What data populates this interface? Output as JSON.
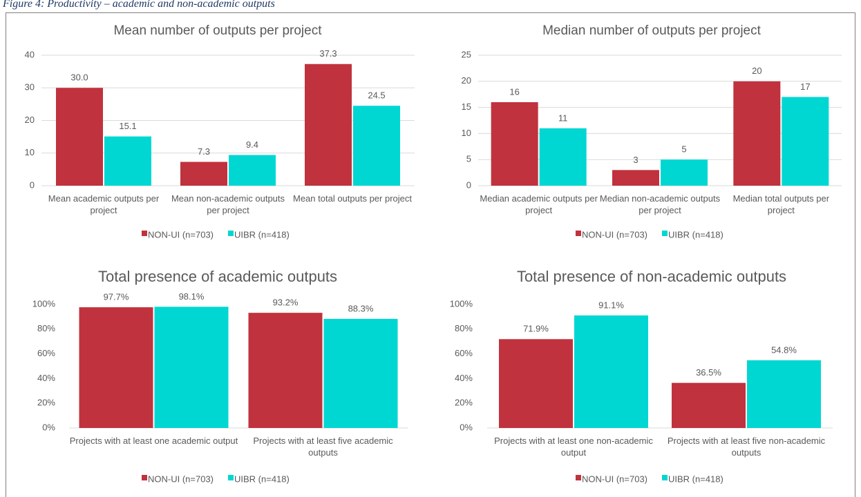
{
  "caption": "Figure 4: Productivity – academic and non-academic outputs",
  "chart_data": [
    {
      "type": "bar",
      "title": "Mean number of outputs per project",
      "categories": [
        "Mean academic outputs per project",
        "Mean non-academic outputs per project",
        "Mean total outputs per project"
      ],
      "series": [
        {
          "name": "NON-UI (n=703)",
          "color": "#c0323d",
          "values": [
            30.0,
            7.3,
            37.3
          ],
          "value_labels": [
            "30.0",
            "7.3",
            "37.3"
          ]
        },
        {
          "name": "UIBR (n=418)",
          "color": "#00d7d2",
          "values": [
            15.1,
            9.4,
            24.5
          ],
          "value_labels": [
            "15.1",
            "9.4",
            "24.5"
          ]
        }
      ],
      "ylim": [
        0,
        40
      ],
      "yticks": [
        0,
        10,
        20,
        30,
        40
      ],
      "grid": true,
      "legend": "bottom"
    },
    {
      "type": "bar",
      "title": "Median number of outputs per project",
      "categories": [
        "Median academic outputs per project",
        "Median non-academic outputs per project",
        "Median total outputs per project"
      ],
      "series": [
        {
          "name": "NON-UI (n=703)",
          "color": "#c0323d",
          "values": [
            16,
            3,
            20
          ]
        },
        {
          "name": "UIBR (n=418)",
          "color": "#00d7d2",
          "values": [
            11,
            5,
            17
          ]
        }
      ],
      "ylim": [
        0,
        25
      ],
      "yticks": [
        0,
        5,
        10,
        15,
        20,
        25
      ],
      "grid": true,
      "legend": "bottom"
    },
    {
      "type": "bar",
      "title": "Total presence of academic outputs",
      "categories": [
        "Projects with at least one academic output",
        "Projects with at  least five academic outputs"
      ],
      "series": [
        {
          "name": "NON-UI (n=703)",
          "color": "#c0323d",
          "values": [
            97.7,
            93.2
          ],
          "value_labels": [
            "97.7%",
            "93.2%"
          ]
        },
        {
          "name": "UIBR (n=418)",
          "color": "#00d7d2",
          "values": [
            98.1,
            88.3
          ],
          "value_labels": [
            "98.1%",
            "88.3%"
          ]
        }
      ],
      "ylim": [
        0,
        100
      ],
      "yticks": [
        {
          "value": 0,
          "label": "0%"
        },
        {
          "value": 20,
          "label": "20%"
        },
        {
          "value": 40,
          "label": "40%"
        },
        {
          "value": 60,
          "label": "60%"
        },
        {
          "value": 80,
          "label": "80%"
        },
        {
          "value": 100,
          "label": "100%"
        }
      ],
      "grid": false,
      "legend": "bottom"
    },
    {
      "type": "bar",
      "title": "Total presence of non-academic outputs",
      "categories": [
        "Projects with at least one non-academic output",
        "Projects with at least five non-academic outputs"
      ],
      "series": [
        {
          "name": "NON-UI (n=703)",
          "color": "#c0323d",
          "values": [
            71.9,
            36.5
          ],
          "value_labels": [
            "71.9%",
            "36.5%"
          ]
        },
        {
          "name": "UIBR (n=418)",
          "color": "#00d7d2",
          "values": [
            91.1,
            54.8
          ],
          "value_labels": [
            "91.1%",
            "54.8%"
          ]
        }
      ],
      "ylim": [
        0,
        100
      ],
      "yticks": [
        {
          "value": 0,
          "label": "0%"
        },
        {
          "value": 20,
          "label": "20%"
        },
        {
          "value": 40,
          "label": "40%"
        },
        {
          "value": 60,
          "label": "60%"
        },
        {
          "value": 80,
          "label": "80%"
        },
        {
          "value": 100,
          "label": "100%"
        }
      ],
      "grid": false,
      "legend": "bottom"
    }
  ]
}
